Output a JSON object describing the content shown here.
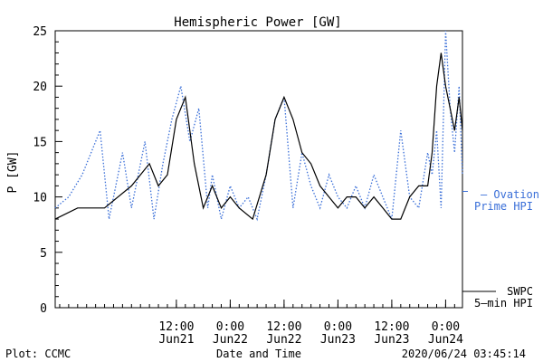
{
  "footer": {
    "plot_credit": "Plot: CCMC",
    "timestamp": "2020/06/24 03:45:14"
  },
  "colors": {
    "swpc": "#000000",
    "ovation": "#3a6fd8",
    "axes": "#000000",
    "background": "#ffffff"
  },
  "chart_data": {
    "type": "line",
    "title": "Hemispheric Power [GW]",
    "xlabel": "Date and Time",
    "ylabel": "P [GW]",
    "ylim": [
      0,
      25
    ],
    "yticks": [
      0,
      5,
      10,
      15,
      20,
      25
    ],
    "xlim": [
      "2020-06-20T09:00",
      "2020-06-24T03:45"
    ],
    "xticks": [
      {
        "t": "2020-06-21T12:00",
        "time": "12:00",
        "date": "Jun21"
      },
      {
        "t": "2020-06-22T00:00",
        "time": "0:00",
        "date": "Jun22"
      },
      {
        "t": "2020-06-22T12:00",
        "time": "12:00",
        "date": "Jun22"
      },
      {
        "t": "2020-06-23T00:00",
        "time": "0:00",
        "date": "Jun23"
      },
      {
        "t": "2020-06-23T12:00",
        "time": "12:00",
        "date": "Jun23"
      },
      {
        "t": "2020-06-24T00:00",
        "time": "0:00",
        "date": "Jun24"
      }
    ],
    "grid": false,
    "legend_placement": "right",
    "series": [
      {
        "name": "Ovation Prime HPI",
        "legend_lines": [
          "– Ovation",
          "Prime HPI"
        ],
        "style": "dotted",
        "x": [
          "2020-06-20T09:00",
          "2020-06-20T12:00",
          "2020-06-20T15:00",
          "2020-06-20T19:00",
          "2020-06-20T21:00",
          "2020-06-21T00:00",
          "2020-06-21T02:00",
          "2020-06-21T05:00",
          "2020-06-21T07:00",
          "2020-06-21T09:00",
          "2020-06-21T11:00",
          "2020-06-21T13:00",
          "2020-06-21T15:00",
          "2020-06-21T17:00",
          "2020-06-21T19:00",
          "2020-06-21T20:00",
          "2020-06-21T22:00",
          "2020-06-22T00:00",
          "2020-06-22T02:00",
          "2020-06-22T04:00",
          "2020-06-22T06:00",
          "2020-06-22T08:00",
          "2020-06-22T10:00",
          "2020-06-22T12:00",
          "2020-06-22T14:00",
          "2020-06-22T16:00",
          "2020-06-22T18:00",
          "2020-06-22T20:00",
          "2020-06-22T22:00",
          "2020-06-23T00:00",
          "2020-06-23T02:00",
          "2020-06-23T04:00",
          "2020-06-23T06:00",
          "2020-06-23T08:00",
          "2020-06-23T10:00",
          "2020-06-23T12:00",
          "2020-06-23T14:00",
          "2020-06-23T16:00",
          "2020-06-23T18:00",
          "2020-06-23T20:00",
          "2020-06-23T21:00",
          "2020-06-23T22:00",
          "2020-06-23T23:00",
          "2020-06-24T00:00",
          "2020-06-24T01:00",
          "2020-06-24T02:00",
          "2020-06-24T03:00",
          "2020-06-24T03:45"
        ],
        "values": [
          9,
          10,
          12,
          16,
          8,
          14,
          9,
          15,
          8,
          13,
          17,
          20,
          15,
          18,
          9,
          12,
          8,
          11,
          9,
          10,
          8,
          12,
          17,
          19,
          9,
          14,
          11,
          9,
          12,
          10,
          9,
          11,
          9,
          12,
          10,
          8,
          16,
          10,
          9,
          14,
          12,
          16,
          9,
          25,
          18,
          14,
          20,
          12
        ]
      },
      {
        "name": "SWPC 5-min HPI",
        "legend_lines": [
          "SWPC",
          "5–min HPI"
        ],
        "style": "solid",
        "x": [
          "2020-06-20T09:00",
          "2020-06-20T14:00",
          "2020-06-20T20:00",
          "2020-06-21T02:00",
          "2020-06-21T06:00",
          "2020-06-21T08:00",
          "2020-06-21T10:00",
          "2020-06-21T12:00",
          "2020-06-21T14:00",
          "2020-06-21T16:00",
          "2020-06-21T18:00",
          "2020-06-21T20:00",
          "2020-06-21T22:00",
          "2020-06-22T00:00",
          "2020-06-22T02:00",
          "2020-06-22T05:00",
          "2020-06-22T08:00",
          "2020-06-22T10:00",
          "2020-06-22T12:00",
          "2020-06-22T14:00",
          "2020-06-22T16:00",
          "2020-06-22T18:00",
          "2020-06-22T20:00",
          "2020-06-22T22:00",
          "2020-06-23T00:00",
          "2020-06-23T02:00",
          "2020-06-23T04:00",
          "2020-06-23T06:00",
          "2020-06-23T08:00",
          "2020-06-23T10:00",
          "2020-06-23T12:00",
          "2020-06-23T14:00",
          "2020-06-23T16:00",
          "2020-06-23T18:00",
          "2020-06-23T20:00",
          "2020-06-23T21:00",
          "2020-06-23T22:00",
          "2020-06-23T23:00",
          "2020-06-24T00:00",
          "2020-06-24T01:00",
          "2020-06-24T02:00",
          "2020-06-24T03:00",
          "2020-06-24T03:45"
        ],
        "values": [
          8,
          9,
          9,
          11,
          13,
          11,
          12,
          17,
          19,
          13,
          9,
          11,
          9,
          10,
          9,
          8,
          12,
          17,
          19,
          17,
          14,
          13,
          11,
          10,
          9,
          10,
          10,
          9,
          10,
          9,
          8,
          8,
          10,
          11,
          11,
          14,
          20,
          23,
          20,
          18,
          16,
          19,
          16
        ]
      }
    ]
  }
}
